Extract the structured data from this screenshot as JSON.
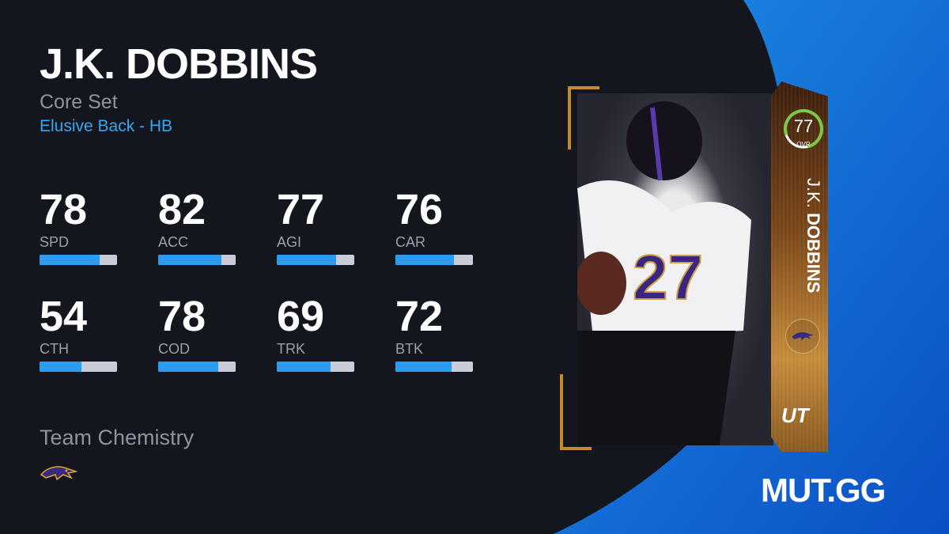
{
  "player": {
    "name": "J.K. DOBBINS",
    "set": "Core Set",
    "archetype": "Elusive Back - HB"
  },
  "stats": [
    {
      "label": "SPD",
      "value": "78"
    },
    {
      "label": "ACC",
      "value": "82"
    },
    {
      "label": "AGI",
      "value": "77"
    },
    {
      "label": "CAR",
      "value": "76"
    },
    {
      "label": "CTH",
      "value": "54"
    },
    {
      "label": "COD",
      "value": "78"
    },
    {
      "label": "TRK",
      "value": "69"
    },
    {
      "label": "BTK",
      "value": "72"
    }
  ],
  "team_chemistry": {
    "label": "Team Chemistry",
    "team_icon": "ravens-logo-icon"
  },
  "card": {
    "ovr": "77",
    "ovr_label": "OVR",
    "first_name": "J.K.",
    "last_name": "DOBBINS",
    "program": "UT",
    "ovr_ring_color": "#7ac943"
  },
  "brand": {
    "logo": "MUT.GG"
  },
  "colors": {
    "accent": "#2d9cf0",
    "bar_track": "#c9ccd9",
    "background": "#14161e"
  }
}
